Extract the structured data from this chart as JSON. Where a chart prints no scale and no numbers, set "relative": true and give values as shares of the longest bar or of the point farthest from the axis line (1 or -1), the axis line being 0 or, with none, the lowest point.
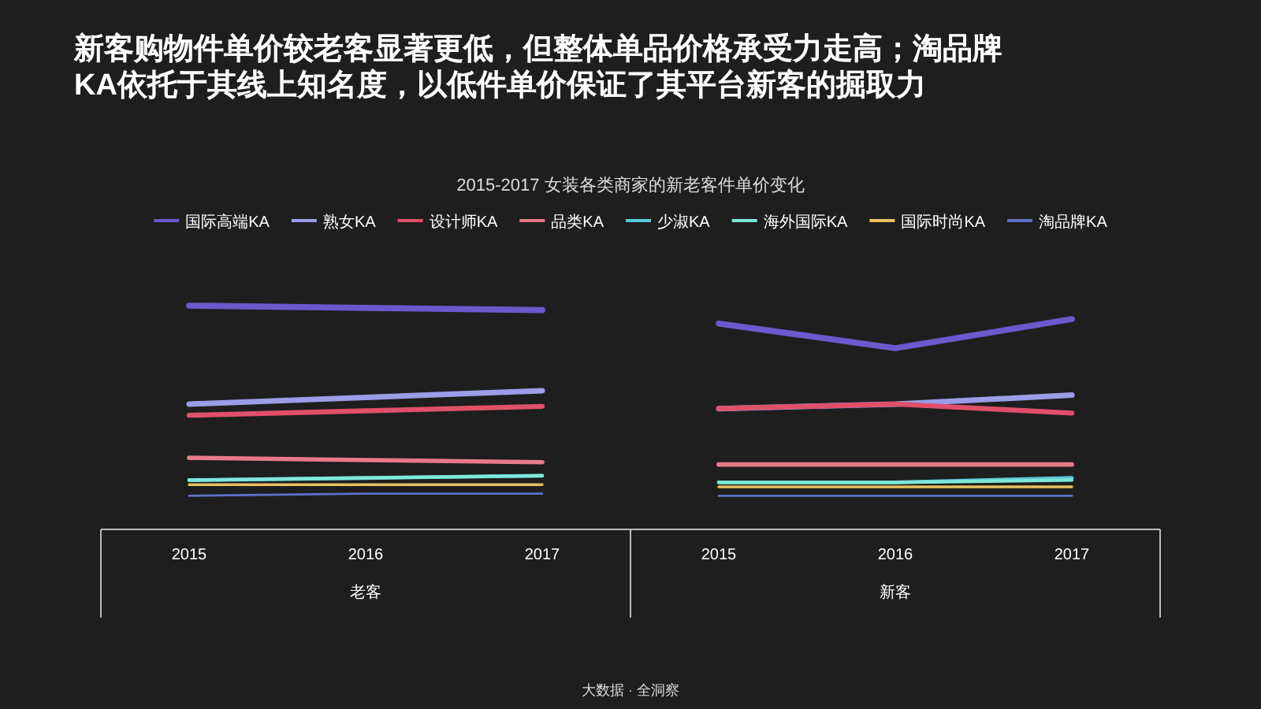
{
  "chart_data": {
    "type": "line",
    "title": "新客购物件单价较老客显著更低，但整体单品价格承受力走高；淘品牌KA依托于其线上知名度，以低件单价保证了其平台新客的掘取力",
    "subtitle": "2015-2017 女装各类商家的新老客件单价变化",
    "categories": [
      "2015",
      "2016",
      "2017",
      "2015",
      "2016",
      "2017"
    ],
    "relative": true,
    "legend": "top",
    "grid": false,
    "marker": "none",
    "line_style": "solid",
    "series": [
      {
        "name": "国际高端KA",
        "color": "#6a5acd",
        "values": [
          1.0,
          0.99,
          0.98,
          0.92,
          0.81,
          0.94
        ]
      },
      {
        "name": "熟女KA",
        "color": "#9c9ce8",
        "values": [
          0.56,
          0.59,
          0.62,
          0.54,
          0.56,
          0.6
        ]
      },
      {
        "name": "设计师KA",
        "color": "#e0506a",
        "values": [
          0.51,
          0.53,
          0.55,
          0.54,
          0.56,
          0.52
        ]
      },
      {
        "name": "品类KA",
        "color": "#e87a8a",
        "values": [
          0.32,
          0.31,
          0.3,
          0.29,
          0.29,
          0.29
        ]
      },
      {
        "name": "少淑KA",
        "color": "#5bc8d8",
        "values": [
          0.22,
          0.23,
          0.24,
          0.21,
          0.21,
          0.23
        ]
      },
      {
        "name": "海外国际KA",
        "color": "#7fe8d8",
        "values": [
          0.22,
          0.23,
          0.24,
          0.21,
          0.21,
          0.22
        ]
      },
      {
        "name": "国际时尚KA",
        "color": "#e8c060",
        "values": [
          0.2,
          0.2,
          0.2,
          0.19,
          0.19,
          0.19
        ]
      },
      {
        "name": "淘品牌KA",
        "color": "#6070c8",
        "values": [
          0.15,
          0.16,
          0.16,
          0.15,
          0.15,
          0.15
        ]
      }
    ],
    "annotations": [
      "老客",
      "新客",
      "大数据 · 全洞察"
    ]
  }
}
